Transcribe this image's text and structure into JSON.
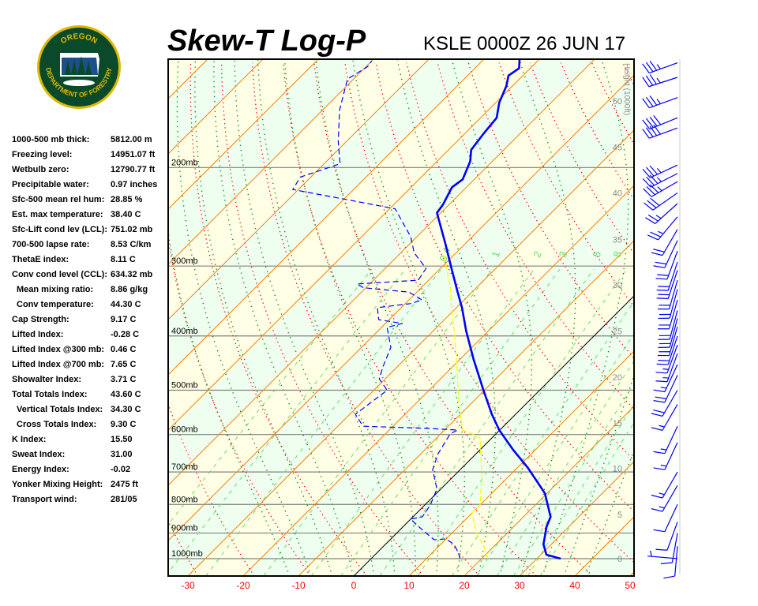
{
  "logo": {
    "top_text": "OREGON",
    "bottom_text": "DEPARTMENT OF FORESTRY"
  },
  "header": {
    "title": "Skew-T Log-P",
    "station": "KSLE 0000Z 26 JUN 17"
  },
  "stats": [
    {
      "label": "1000-500 mb thick:",
      "value": "5812.00 m"
    },
    {
      "label": "Freezing level:",
      "value": "14951.07 ft"
    },
    {
      "label": "Wetbulb zero:",
      "value": "12790.77 ft"
    },
    {
      "label": "Precipitable water:",
      "value": "0.97 inches"
    },
    {
      "label": "Sfc-500 mean rel hum:",
      "value": "28.85 %"
    },
    {
      "label": "Est. max temperature:",
      "value": "38.40 C"
    },
    {
      "label": "Sfc-Lift cond lev (LCL):",
      "value": "751.02 mb"
    },
    {
      "label": "700-500 lapse rate:",
      "value": "8.53 C/km"
    },
    {
      "label": "ThetaE index:",
      "value": "8.11 C"
    },
    {
      "label": "Conv cond level (CCL):",
      "value": "634.32 mb"
    },
    {
      "label": "Mean mixing ratio:",
      "value": "8.86 g/kg",
      "indent": true
    },
    {
      "label": "Conv temperature:",
      "value": "44.30 C",
      "indent": true
    },
    {
      "label": "Cap Strength:",
      "value": "9.17 C"
    },
    {
      "label": "Lifted Index:",
      "value": "-0.28 C"
    },
    {
      "label": "Lifted Index @300 mb:",
      "value": "0.46 C"
    },
    {
      "label": "Lifted Index @700 mb:",
      "value": "7.65 C"
    },
    {
      "label": "Showalter Index:",
      "value": "3.71 C"
    },
    {
      "label": "Total Totals Index:",
      "value": "43.60 C"
    },
    {
      "label": "Vertical Totals Index:",
      "value": "34.30 C",
      "indent": true
    },
    {
      "label": "Cross Totals Index:",
      "value": "9.30 C",
      "indent": true
    },
    {
      "label": "K Index:",
      "value": "15.50"
    },
    {
      "label": "Sweat Index:",
      "value": "31.00"
    },
    {
      "label": "Energy Index:",
      "value": "-0.02"
    },
    {
      "label": "Yonker Mixing Height:",
      "value": "2475 ft"
    },
    {
      "label": "Transport wind:",
      "value": "281/05"
    }
  ],
  "chart_data": {
    "type": "line",
    "subtype": "skew-t log-p",
    "y_scale": "log pressure (mb)",
    "pressure_range": [
      1074,
      128
    ],
    "x_ticks": [
      -30,
      -20,
      -10,
      0,
      10,
      20,
      30,
      40,
      50
    ],
    "x_tick_labels": [
      "-30",
      "-20",
      "-10",
      "0",
      "10",
      "20",
      "30",
      "40",
      "50"
    ],
    "isobars": [
      {
        "p": 200,
        "label": "200mb"
      },
      {
        "p": 300,
        "label": "300mb"
      },
      {
        "p": 400,
        "label": "400mb"
      },
      {
        "p": 500,
        "label": "500mb"
      },
      {
        "p": 600,
        "label": "600mb"
      },
      {
        "p": 700,
        "label": "700mb"
      },
      {
        "p": 800,
        "label": "800mb"
      },
      {
        "p": 900,
        "label": "900mb"
      },
      {
        "p": 1000,
        "label": "1000mb"
      }
    ],
    "height_axis": {
      "label": "Height (1000ft)",
      "ticks": [
        {
          "p": 1000,
          "label": "0"
        },
        {
          "p": 834,
          "label": "5"
        },
        {
          "p": 690,
          "label": "10"
        },
        {
          "p": 572,
          "label": "15"
        },
        {
          "p": 474,
          "label": "20"
        },
        {
          "p": 392,
          "label": "25"
        },
        {
          "p": 324,
          "label": "30"
        },
        {
          "p": 269,
          "label": "35"
        },
        {
          "p": 222,
          "label": "40"
        },
        {
          "p": 184,
          "label": "45"
        },
        {
          "p": 152,
          "label": "50"
        }
      ]
    },
    "mixing_ratio_labels": [
      {
        "w": 0.4,
        "label": "0.4"
      },
      {
        "w": 1,
        "label": "1"
      },
      {
        "w": 2,
        "label": "2"
      },
      {
        "w": 3,
        "label": "3"
      },
      {
        "w": 5,
        "label": "5"
      },
      {
        "w": 8,
        "label": "8"
      }
    ],
    "mixing_ratio_lines": [
      0.1,
      0.2,
      0.4,
      1,
      2,
      3,
      5,
      8,
      12,
      16,
      20,
      24,
      28,
      32
    ],
    "dry_adiabats_K": [
      230,
      240,
      250,
      260,
      270,
      280,
      290,
      300,
      310,
      320,
      330,
      340,
      350,
      360,
      370,
      380,
      390,
      400,
      410,
      420,
      430,
      440,
      450,
      460,
      470,
      480
    ],
    "moist_adiabats_C": [
      -16,
      -12,
      -8,
      -4,
      0,
      4,
      8,
      12,
      16,
      20,
      24,
      28,
      32,
      36,
      40
    ],
    "freezing_isotherm_C": 0,
    "colors": {
      "temperature": "#0000ff",
      "dewpoint": "#0000ff",
      "wetbulb": "#ffff00",
      "isotherm": "#ff8000",
      "freezing_isotherm": "#000000",
      "dry_adiabat": "#ff0000",
      "moist_adiabat": "#008000",
      "mixing_ratio": "#66dd66",
      "isobar": "#808080",
      "band_a": "#ffffe6",
      "band_b": "#eefff0",
      "wind": "#0000ff",
      "tick_labels": "#ff0000"
    },
    "series": [
      {
        "kind": "temperature",
        "points": [
          [
            1000,
            34.3
          ],
          [
            984,
            31.0
          ],
          [
            943,
            28.6
          ],
          [
            878,
            26.0
          ],
          [
            842,
            24.9
          ],
          [
            764,
            19.6
          ],
          [
            688,
            11.9
          ],
          [
            639,
            6.0
          ],
          [
            589,
            -0.1
          ],
          [
            552,
            -4.3
          ],
          [
            498,
            -10.4
          ],
          [
            440,
            -17.6
          ],
          [
            392,
            -24
          ],
          [
            356,
            -29
          ],
          [
            334,
            -32.6
          ],
          [
            303,
            -38
          ],
          [
            275,
            -43.3
          ],
          [
            241,
            -50.7
          ],
          [
            233,
            -51.1
          ],
          [
            217,
            -52.6
          ],
          [
            210,
            -52.1
          ],
          [
            195,
            -54
          ],
          [
            186,
            -55.9
          ],
          [
            174,
            -56.6
          ],
          [
            163,
            -57.1
          ],
          [
            153,
            -59.4
          ],
          [
            143,
            -61.1
          ],
          [
            137,
            -62.6
          ],
          [
            133,
            -62
          ],
          [
            128,
            -63.6
          ]
        ]
      },
      {
        "kind": "dewpoint",
        "points": [
          [
            1000,
            16.1
          ],
          [
            974,
            14.6
          ],
          [
            943,
            12.4
          ],
          [
            922,
            10.0
          ],
          [
            925,
            8.0
          ],
          [
            913,
            6.7
          ],
          [
            870,
            2.1
          ],
          [
            850,
            0
          ],
          [
            842,
            1.7
          ],
          [
            802,
            1.0
          ],
          [
            751,
            -0.7
          ],
          [
            693,
            -5
          ],
          [
            649,
            -6.9
          ],
          [
            598,
            -8.3
          ],
          [
            589,
            -7.6
          ],
          [
            585,
            -13.3
          ],
          [
            580,
            -25.4
          ],
          [
            552,
            -29
          ],
          [
            526,
            -28.3
          ],
          [
            500,
            -27.6
          ],
          [
            477,
            -31.1
          ],
          [
            454,
            -32.6
          ],
          [
            419,
            -34.7
          ],
          [
            386,
            -39
          ],
          [
            380,
            -36.9
          ],
          [
            374,
            -41.9
          ],
          [
            356,
            -44.3
          ],
          [
            350,
            -39
          ],
          [
            345,
            -37.6
          ],
          [
            334,
            -41.4
          ],
          [
            328,
            -50.4
          ],
          [
            323,
            -52.3
          ],
          [
            318,
            -41.9
          ],
          [
            303,
            -42.6
          ],
          [
            284,
            -47.6
          ],
          [
            266,
            -51.1
          ],
          [
            237,
            -59
          ],
          [
            227,
            -70.9
          ],
          [
            219,
            -81
          ],
          [
            208,
            -81.9
          ],
          [
            197,
            -77.1
          ],
          [
            180,
            -81.4
          ],
          [
            158,
            -86.9
          ],
          [
            139,
            -91.1
          ],
          [
            132,
            -89.7
          ],
          [
            129,
            -90
          ]
        ]
      },
      {
        "kind": "wetbulb",
        "points": [
          [
            1000,
            21.1
          ],
          [
            943,
            17.7
          ],
          [
            913,
            15.3
          ],
          [
            861,
            12
          ],
          [
            828,
            10
          ],
          [
            802,
            10
          ],
          [
            704,
            4.6
          ],
          [
            609,
            -2.1
          ],
          [
            598,
            -4.4
          ],
          [
            589,
            -6.7
          ],
          [
            543,
            -10.9
          ],
          [
            493,
            -15.4
          ],
          [
            440,
            -20.7
          ],
          [
            399,
            -25.3
          ],
          [
            356,
            -30.9
          ],
          [
            328,
            -34.7
          ],
          [
            303,
            -38.9
          ],
          [
            285,
            -42
          ]
        ]
      }
    ],
    "winds": [
      [
        130,
        250,
        35
      ],
      [
        138,
        252,
        35
      ],
      [
        150,
        250,
        35
      ],
      [
        163,
        248,
        40
      ],
      [
        170,
        250,
        40
      ],
      [
        198,
        245,
        35
      ],
      [
        205,
        243,
        35
      ],
      [
        212,
        240,
        35
      ],
      [
        222,
        235,
        30
      ],
      [
        232,
        228,
        25
      ],
      [
        245,
        220,
        25
      ],
      [
        258,
        210,
        20
      ],
      [
        270,
        205,
        20
      ],
      [
        282,
        200,
        20
      ],
      [
        295,
        198,
        20
      ],
      [
        305,
        198,
        20
      ],
      [
        318,
        196,
        20
      ],
      [
        330,
        195,
        20
      ],
      [
        345,
        196,
        20
      ],
      [
        360,
        195,
        20
      ],
      [
        372,
        195,
        20
      ],
      [
        385,
        196,
        20
      ],
      [
        400,
        198,
        20
      ],
      [
        415,
        200,
        15
      ],
      [
        430,
        200,
        15
      ],
      [
        450,
        205,
        15
      ],
      [
        470,
        205,
        20
      ],
      [
        500,
        210,
        20
      ],
      [
        530,
        210,
        15
      ],
      [
        580,
        205,
        15
      ],
      [
        620,
        205,
        15
      ],
      [
        700,
        210,
        15
      ],
      [
        740,
        210,
        15
      ],
      [
        800,
        205,
        10
      ],
      [
        860,
        200,
        10
      ],
      [
        900,
        190,
        10
      ],
      [
        950,
        185,
        10
      ],
      [
        1000,
        275,
        5
      ]
    ]
  }
}
